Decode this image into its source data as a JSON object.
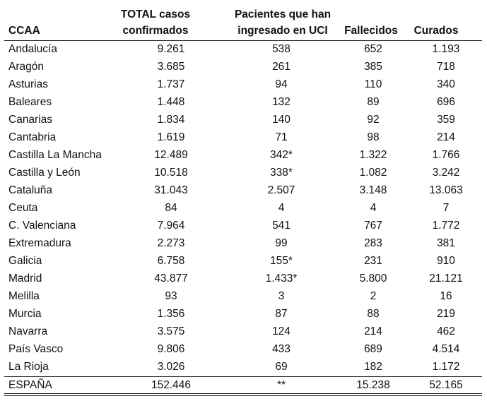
{
  "table": {
    "header": [
      [
        "CCAA"
      ],
      [
        "TOTAL casos",
        "confirmados"
      ],
      [
        "Pacientes que han",
        "ingresado en UCI"
      ],
      [
        "Fallecidos"
      ],
      [
        "Curados"
      ]
    ],
    "rows": [
      [
        "Andalucía",
        "9.261",
        "538",
        "652",
        "1.193"
      ],
      [
        "Aragón",
        "3.685",
        "261",
        "385",
        "718"
      ],
      [
        "Asturias",
        "1.737",
        "94",
        "110",
        "340"
      ],
      [
        "Baleares",
        "1.448",
        "132",
        "89",
        "696"
      ],
      [
        "Canarias",
        "1.834",
        "140",
        "92",
        "359"
      ],
      [
        "Cantabria",
        "1.619",
        "71",
        "98",
        "214"
      ],
      [
        "Castilla La Mancha",
        "12.489",
        "342*",
        "1.322",
        "1.766"
      ],
      [
        "Castilla y León",
        "10.518",
        "338*",
        "1.082",
        "3.242"
      ],
      [
        "Cataluña",
        "31.043",
        "2.507",
        "3.148",
        "13.063"
      ],
      [
        "Ceuta",
        "84",
        "4",
        "4",
        "7"
      ],
      [
        "C. Valenciana",
        "7.964",
        "541",
        "767",
        "1.772"
      ],
      [
        "Extremadura",
        "2.273",
        "99",
        "283",
        "381"
      ],
      [
        "Galicia",
        "6.758",
        "155*",
        "231",
        "910"
      ],
      [
        "Madrid",
        "43.877",
        "1.433*",
        "5.800",
        "21.121"
      ],
      [
        "Melilla",
        "93",
        "3",
        "2",
        "16"
      ],
      [
        "Murcia",
        "1.356",
        "87",
        "88",
        "219"
      ],
      [
        "Navarra",
        "3.575",
        "124",
        "214",
        "462"
      ],
      [
        "País Vasco",
        "9.806",
        "433",
        "689",
        "4.514"
      ],
      [
        "La Rioja",
        "3.026",
        "69",
        "182",
        "1.172"
      ]
    ],
    "total": [
      "ESPAÑA",
      "152.446",
      "**",
      "15.238",
      "52.165"
    ]
  }
}
